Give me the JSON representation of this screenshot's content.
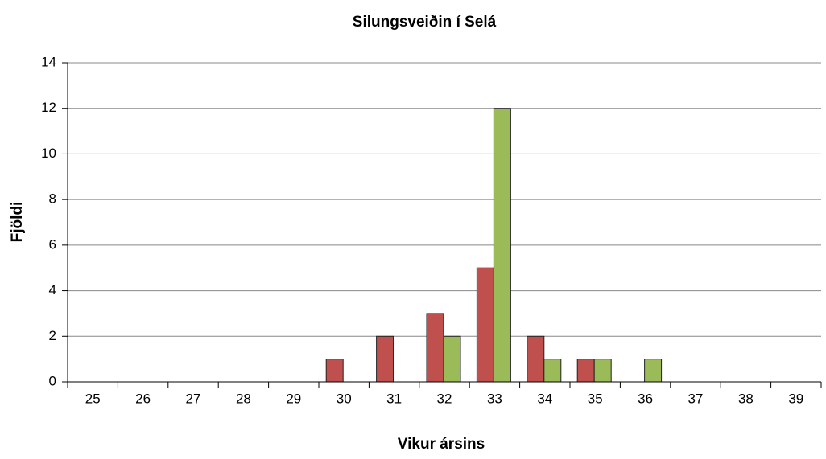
{
  "chart_data": {
    "type": "bar",
    "title": "Silungsveiðin  í Selá",
    "x_label": "Vikur ársins",
    "y_label": "Fjöldi",
    "categories": [
      "25",
      "26",
      "27",
      "28",
      "29",
      "30",
      "31",
      "32",
      "33",
      "34",
      "35",
      "36",
      "37",
      "38",
      "39"
    ],
    "series": [
      {
        "color": "#c0504d",
        "values": [
          0,
          0,
          0,
          0,
          0,
          1,
          2,
          3,
          5,
          2,
          1,
          0,
          0,
          0,
          0
        ]
      },
      {
        "color": "#9bbb59",
        "values": [
          0,
          0,
          0,
          0,
          0,
          0,
          0,
          2,
          12,
          1,
          1,
          1,
          0,
          0,
          0
        ]
      }
    ],
    "ylim": [
      0,
      14
    ],
    "yticks": [
      0,
      2,
      4,
      6,
      8,
      10,
      12,
      14
    ],
    "grid": true
  }
}
